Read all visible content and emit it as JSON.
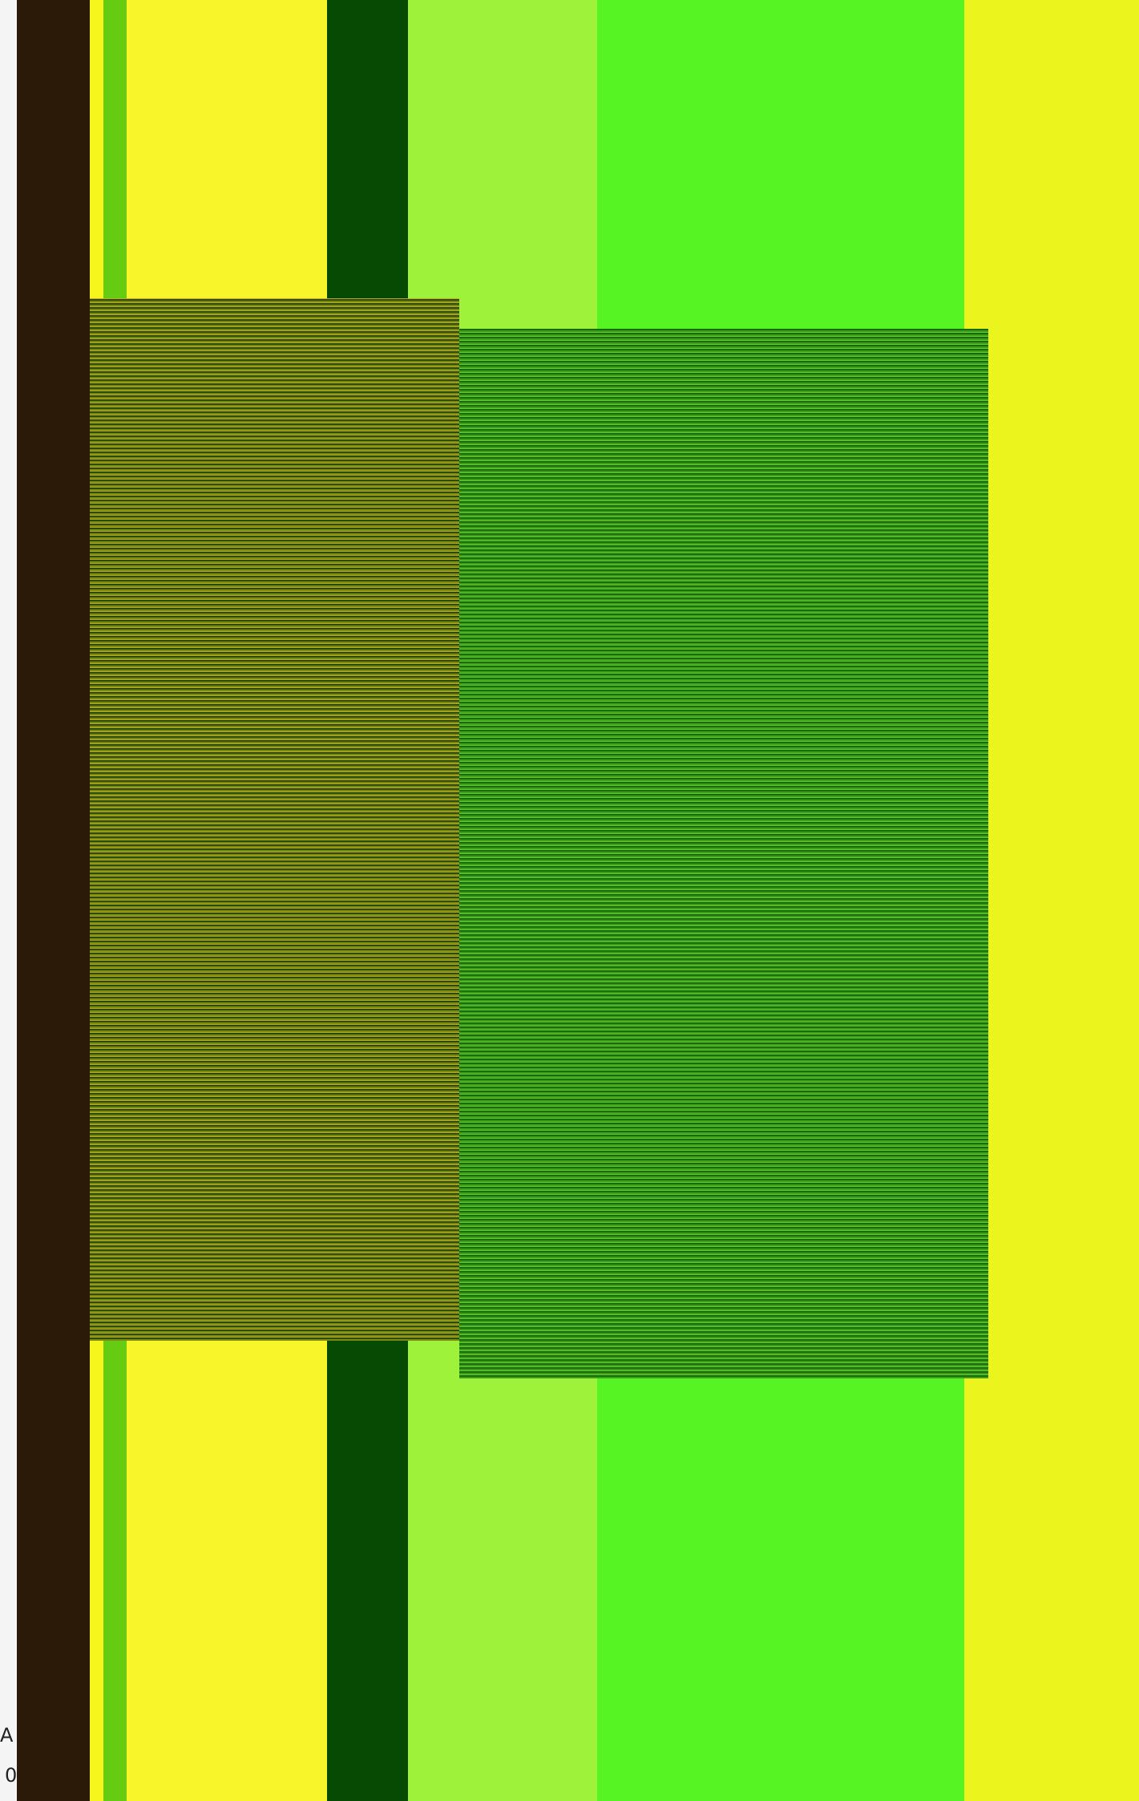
{
  "screen": {
    "fragments": [
      "A",
      "0"
    ]
  }
}
